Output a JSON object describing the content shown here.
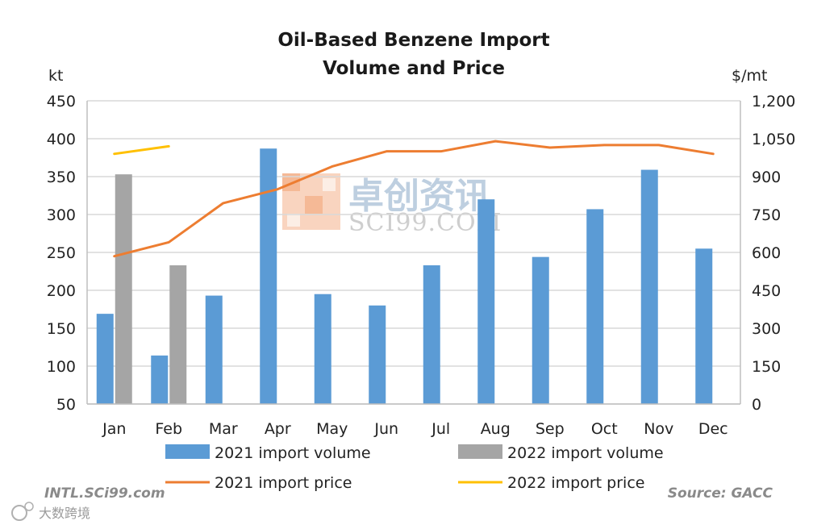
{
  "chart_data": {
    "type": "bar",
    "title_lines": [
      "Oil-Based Benzene Import",
      "Volume and Price"
    ],
    "left_unit": "kt",
    "right_unit": "$/mt",
    "categories": [
      "Jan",
      "Feb",
      "Mar",
      "Apr",
      "May",
      "Jun",
      "Jul",
      "Aug",
      "Sep",
      "Oct",
      "Nov",
      "Dec"
    ],
    "ylim": [
      50,
      450
    ],
    "y_ticks": [
      50,
      100,
      150,
      200,
      250,
      300,
      350,
      400,
      450
    ],
    "y2lim": [
      0,
      1200
    ],
    "y2_ticks": [
      0,
      150,
      300,
      450,
      600,
      750,
      900,
      1050,
      1200
    ],
    "y2_tick_labels": [
      "0",
      "150",
      "300",
      "450",
      "600",
      "750",
      "900",
      "1,050",
      "1,200"
    ],
    "grid": true,
    "legend_position": "bottom",
    "bar_series": [
      {
        "name": "2021 import volume",
        "color": "#5b9bd5",
        "values": [
          169,
          114,
          193,
          387,
          195,
          180,
          233,
          320,
          244,
          307,
          359,
          255
        ]
      },
      {
        "name": "2022 import volume",
        "color": "#a5a5a5",
        "values": [
          353,
          233,
          null,
          null,
          null,
          null,
          null,
          null,
          null,
          null,
          null,
          null
        ]
      }
    ],
    "line_series": [
      {
        "name": "2021 import price",
        "color": "#ed7d31",
        "axis": "right",
        "values": [
          585,
          640,
          795,
          850,
          940,
          1000,
          1000,
          1040,
          1015,
          1025,
          1025,
          990
        ]
      },
      {
        "name": "2022 import price",
        "color": "#ffc000",
        "axis": "right",
        "values": [
          990,
          1020,
          null,
          null,
          null,
          null,
          null,
          null,
          null,
          null,
          null,
          null
        ]
      }
    ]
  },
  "footer": {
    "left": "INTL.SCi99.com",
    "right": "Source: GACC"
  },
  "watermark": {
    "cn": "卓创资讯",
    "en": "SCI99.COM",
    "corner": "大数跨境"
  },
  "colors": {
    "grid": "#d9d9d9",
    "axis": "#bfbfbf",
    "watermark_logo": "#f4a582"
  }
}
